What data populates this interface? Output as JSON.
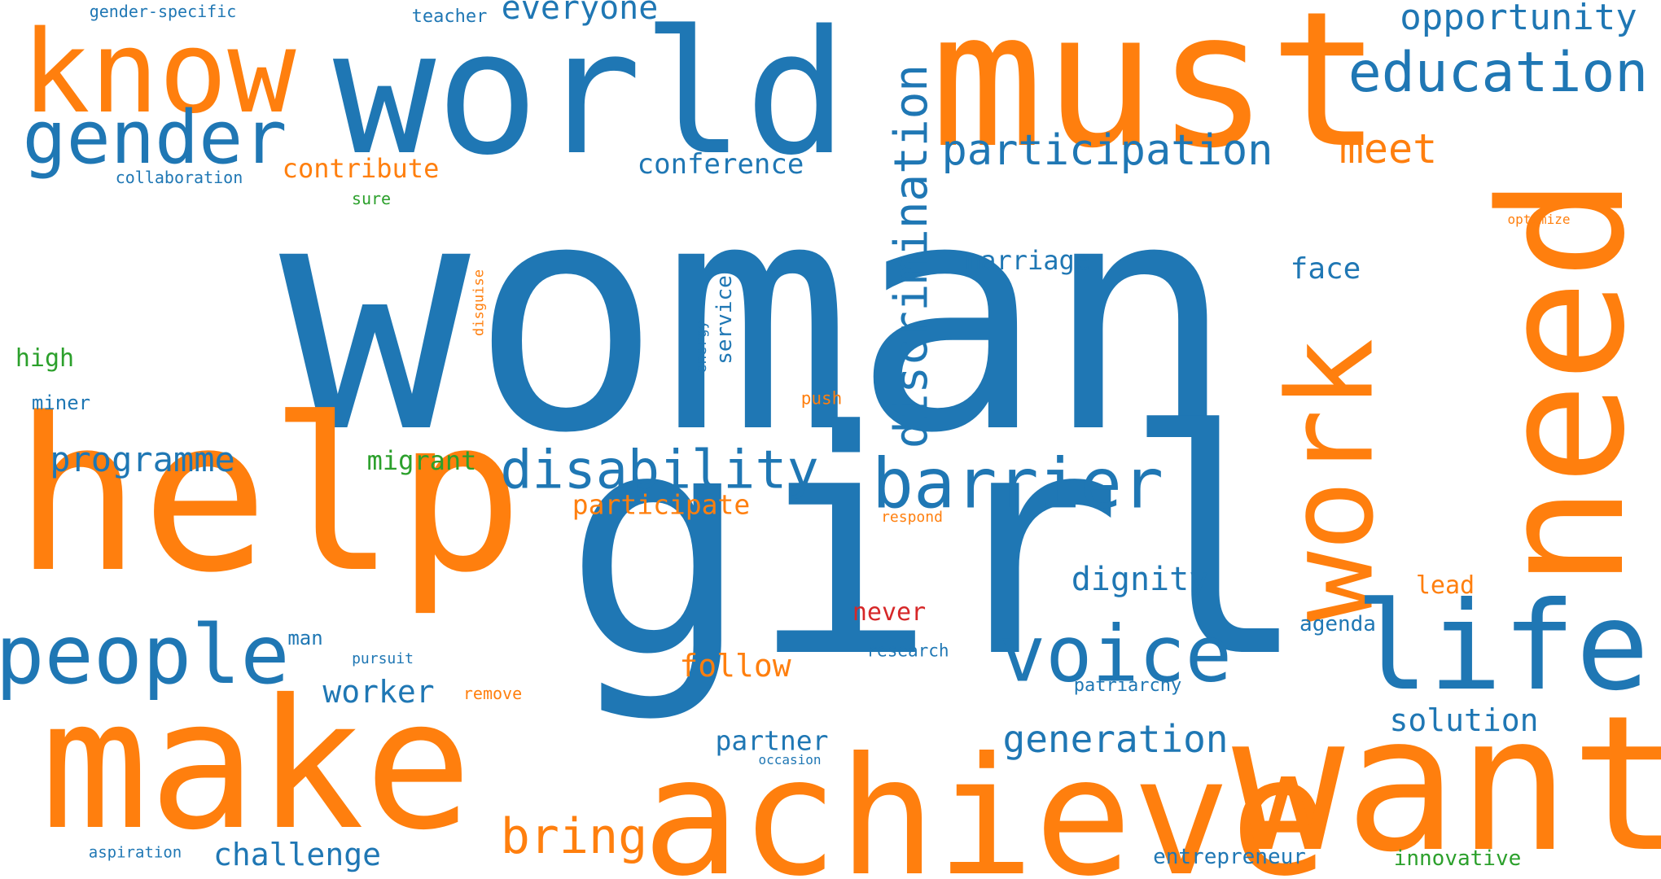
{
  "colors": {
    "blue": "#1f77b4",
    "orange": "#ff7f0e",
    "green": "#2ca02c",
    "red": "#d62728",
    "background": "#ffffff"
  },
  "words": [
    {
      "text": "woman",
      "color": "blue"
    },
    {
      "text": "girl",
      "color": "blue"
    },
    {
      "text": "help",
      "color": "orange"
    },
    {
      "text": "world",
      "color": "blue"
    },
    {
      "text": "must",
      "color": "orange"
    },
    {
      "text": "need",
      "color": "orange"
    },
    {
      "text": "make",
      "color": "orange"
    },
    {
      "text": "achieve",
      "color": "orange"
    },
    {
      "text": "want",
      "color": "orange"
    },
    {
      "text": "know",
      "color": "orange"
    },
    {
      "text": "work",
      "color": "orange"
    },
    {
      "text": "life",
      "color": "blue"
    },
    {
      "text": "gender",
      "color": "blue"
    },
    {
      "text": "people",
      "color": "blue"
    },
    {
      "text": "voice",
      "color": "blue"
    },
    {
      "text": "barrier",
      "color": "blue"
    },
    {
      "text": "education",
      "color": "blue"
    },
    {
      "text": "disability",
      "color": "blue"
    },
    {
      "text": "discrimination",
      "color": "blue"
    },
    {
      "text": "participation",
      "color": "blue"
    },
    {
      "text": "bring",
      "color": "orange"
    },
    {
      "text": "opportunity",
      "color": "blue"
    },
    {
      "text": "generation",
      "color": "blue"
    },
    {
      "text": "programme",
      "color": "blue"
    },
    {
      "text": "meet",
      "color": "orange"
    },
    {
      "text": "everyone",
      "color": "blue"
    },
    {
      "text": "challenge",
      "color": "blue"
    },
    {
      "text": "dignity",
      "color": "blue"
    },
    {
      "text": "follow",
      "color": "orange"
    },
    {
      "text": "solution",
      "color": "blue"
    },
    {
      "text": "worker",
      "color": "blue"
    },
    {
      "text": "conference",
      "color": "blue"
    },
    {
      "text": "contribute",
      "color": "orange"
    },
    {
      "text": "marriage",
      "color": "blue"
    },
    {
      "text": "face",
      "color": "blue"
    },
    {
      "text": "partner",
      "color": "blue"
    },
    {
      "text": "participate",
      "color": "orange"
    },
    {
      "text": "migrant",
      "color": "green"
    },
    {
      "text": "lead",
      "color": "orange"
    },
    {
      "text": "never",
      "color": "red"
    },
    {
      "text": "high",
      "color": "green"
    },
    {
      "text": "service",
      "color": "blue"
    },
    {
      "text": "agenda",
      "color": "blue"
    },
    {
      "text": "entrepreneur",
      "color": "blue"
    },
    {
      "text": "innovative",
      "color": "green"
    },
    {
      "text": "miner",
      "color": "blue"
    },
    {
      "text": "man",
      "color": "blue"
    },
    {
      "text": "teacher",
      "color": "blue"
    },
    {
      "text": "gender-specific",
      "color": "blue"
    },
    {
      "text": "collaboration",
      "color": "blue"
    },
    {
      "text": "sure",
      "color": "green"
    },
    {
      "text": "push",
      "color": "orange"
    },
    {
      "text": "research",
      "color": "blue"
    },
    {
      "text": "patriarchy",
      "color": "blue"
    },
    {
      "text": "pursuit",
      "color": "blue"
    },
    {
      "text": "remove",
      "color": "orange"
    },
    {
      "text": "respond",
      "color": "orange"
    },
    {
      "text": "aspiration",
      "color": "blue"
    },
    {
      "text": "energy",
      "color": "blue"
    },
    {
      "text": "disguise",
      "color": "orange"
    },
    {
      "text": "occasion",
      "color": "blue"
    },
    {
      "text": "optimize",
      "color": "orange"
    }
  ]
}
